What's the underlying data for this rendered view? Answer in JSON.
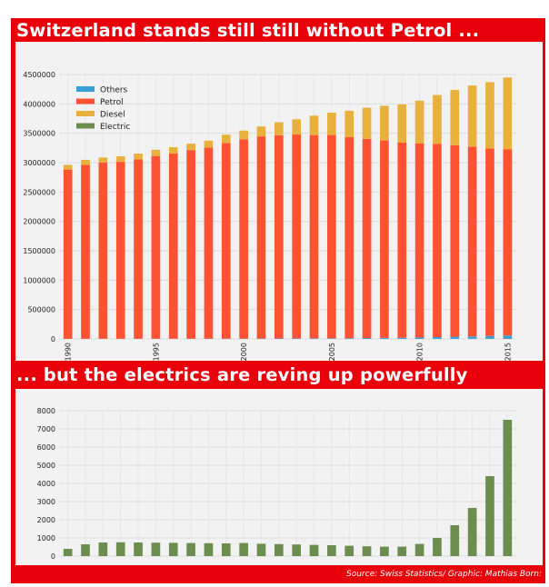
{
  "headline_top": "Switzerland stands still still without Petrol ...",
  "headline_bottom": "... but the electrics are reving up powerfully",
  "source": "Source: Swiss Statistics/ Graphic: Mathias Born:",
  "colors": {
    "frame": "#e8000b",
    "others": "#3a9fd8",
    "petrol": "#ff5233",
    "diesel": "#e8b13d",
    "electric": "#6b8e4e"
  },
  "chart_data": [
    {
      "type": "bar",
      "stacked": true,
      "title": "",
      "xlabel": "",
      "ylabel": "",
      "x": [
        1990,
        1991,
        1992,
        1993,
        1994,
        1995,
        1996,
        1997,
        1998,
        1999,
        2000,
        2001,
        2002,
        2003,
        2004,
        2005,
        2006,
        2007,
        2008,
        2009,
        2010,
        2011,
        2012,
        2013,
        2014,
        2015
      ],
      "xtick_labels": [
        "1990",
        "1995",
        "2000",
        "2005",
        "2010",
        "2015"
      ],
      "ylim": [
        0,
        4500000
      ],
      "yticks": [
        0,
        500000,
        1000000,
        1500000,
        2000000,
        2500000,
        3000000,
        3500000,
        4000000,
        4500000
      ],
      "legend_position": "top-left",
      "grid": true,
      "series": [
        {
          "name": "Electric",
          "values": [
            400,
            650,
            750,
            760,
            750,
            740,
            730,
            720,
            710,
            700,
            720,
            680,
            660,
            640,
            620,
            600,
            570,
            540,
            520,
            520,
            670,
            1000,
            1700,
            2650,
            4400,
            7500
          ]
        },
        {
          "name": "Others",
          "values": [
            2000,
            2200,
            2400,
            2600,
            2800,
            3000,
            3300,
            3600,
            4000,
            4500,
            5000,
            6000,
            7000,
            8000,
            9000,
            10000,
            12000,
            14000,
            17000,
            20000,
            24000,
            30000,
            36000,
            40000,
            46000,
            52000
          ]
        },
        {
          "name": "Petrol",
          "values": [
            2880000,
            2960000,
            3000000,
            3010000,
            3050000,
            3110000,
            3150000,
            3210000,
            3250000,
            3330000,
            3390000,
            3440000,
            3460000,
            3470000,
            3460000,
            3460000,
            3420000,
            3390000,
            3360000,
            3320000,
            3300000,
            3290000,
            3260000,
            3230000,
            3190000,
            3170000
          ]
        },
        {
          "name": "Diesel",
          "values": [
            80000,
            85000,
            85000,
            95000,
            100000,
            105000,
            110000,
            110000,
            120000,
            140000,
            150000,
            170000,
            220000,
            260000,
            330000,
            380000,
            450000,
            530000,
            590000,
            650000,
            730000,
            830000,
            940000,
            1040000,
            1130000,
            1220000
          ]
        }
      ],
      "legend": [
        "Others",
        "Petrol",
        "Diesel",
        "Electric"
      ]
    },
    {
      "type": "bar",
      "title": "",
      "xlabel": "",
      "ylabel": "",
      "x": [
        1990,
        1991,
        1992,
        1993,
        1994,
        1995,
        1996,
        1997,
        1998,
        1999,
        2000,
        2001,
        2002,
        2003,
        2004,
        2005,
        2006,
        2007,
        2008,
        2009,
        2010,
        2011,
        2012,
        2013,
        2014,
        2015
      ],
      "ylim": [
        0,
        8000
      ],
      "yticks": [
        0,
        1000,
        2000,
        3000,
        4000,
        5000,
        6000,
        7000,
        8000
      ],
      "grid": true,
      "series": [
        {
          "name": "Electric",
          "values": [
            400,
            650,
            750,
            760,
            750,
            740,
            730,
            720,
            710,
            700,
            720,
            680,
            660,
            640,
            620,
            600,
            570,
            540,
            520,
            520,
            670,
            1000,
            1700,
            2650,
            4400,
            7500
          ]
        }
      ]
    }
  ]
}
